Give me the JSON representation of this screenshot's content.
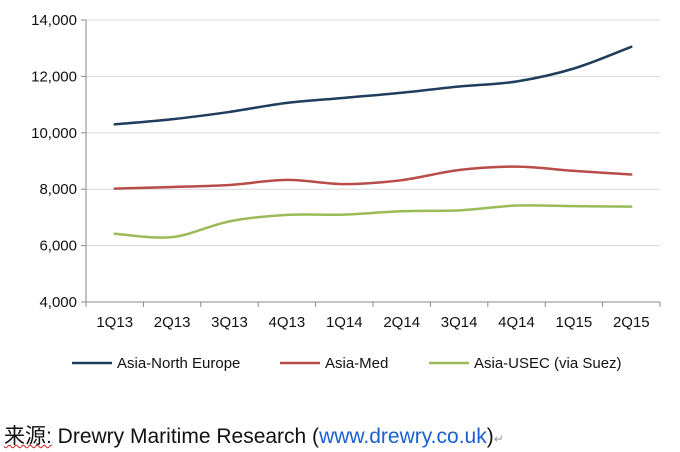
{
  "chart_data": {
    "type": "line",
    "title": "",
    "xlabel": "",
    "ylabel": "",
    "categories": [
      "1Q13",
      "2Q13",
      "3Q13",
      "4Q13",
      "1Q14",
      "2Q14",
      "3Q14",
      "4Q14",
      "1Q15",
      "2Q15"
    ],
    "ylim": [
      4000,
      14000
    ],
    "yticks": [
      4000,
      6000,
      8000,
      10000,
      12000,
      14000
    ],
    "ytick_labels": [
      "4,000",
      "6,000",
      "8,000",
      "10,000",
      "12,000",
      "14,000"
    ],
    "grid": true,
    "legend_position": "bottom",
    "series": [
      {
        "name": "Asia-North Europe",
        "color": "#1f3d5c",
        "values": [
          10300,
          10480,
          10740,
          11060,
          11240,
          11420,
          11640,
          11820,
          12280,
          13050
        ]
      },
      {
        "name": "Asia-Med",
        "color": "#b84c48",
        "values": [
          8020,
          8080,
          8150,
          8330,
          8180,
          8320,
          8680,
          8800,
          8650,
          8520
        ]
      },
      {
        "name": "Asia-USEC (via Suez)",
        "color": "#9bbb59",
        "values": [
          6420,
          6300,
          6860,
          7090,
          7100,
          7220,
          7250,
          7420,
          7400,
          7380
        ]
      }
    ]
  },
  "source": {
    "prefix": "来源:",
    "text": " Drewry Maritime Research (",
    "link": "www.drewry.co.uk",
    "suffix": ")",
    "mark": "↵"
  }
}
